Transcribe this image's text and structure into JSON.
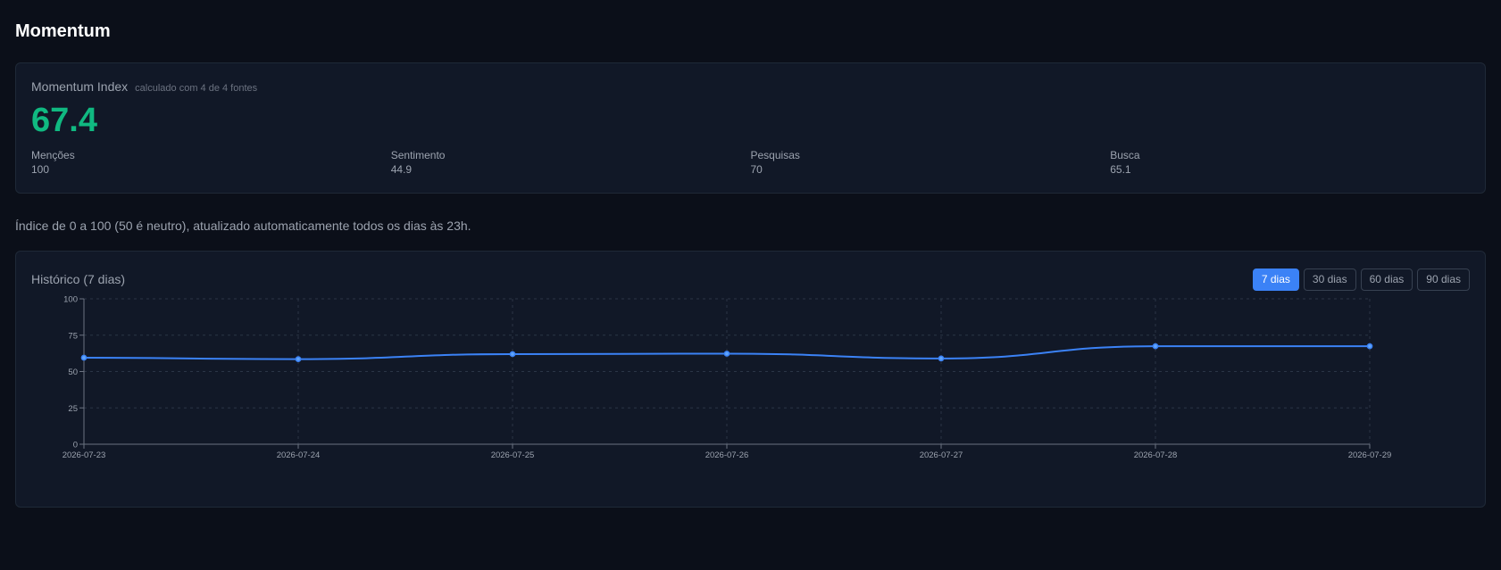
{
  "header": {
    "title": "Momentum"
  },
  "index_card": {
    "title": "Momentum Index",
    "subtitle": "calculado com 4 de 4 fontes",
    "value": "67.4",
    "value_color": "#10b981",
    "metrics": [
      {
        "label": "Menções",
        "value": "100"
      },
      {
        "label": "Sentimento",
        "value": "44.9"
      },
      {
        "label": "Pesquisas",
        "value": "70"
      },
      {
        "label": "Busca",
        "value": "65.1"
      }
    ]
  },
  "description": "Índice de 0 a 100 (50 é neutro), atualizado automaticamente todos os dias às 23h.",
  "history": {
    "title": "Histórico (7 dias)",
    "ranges": [
      {
        "label": "7 dias",
        "active": true
      },
      {
        "label": "30 dias",
        "active": false
      },
      {
        "label": "60 dias",
        "active": false
      },
      {
        "label": "90 dias",
        "active": false
      }
    ]
  },
  "chart_data": {
    "type": "line",
    "x": [
      "2026-07-23",
      "2026-07-24",
      "2026-07-25",
      "2026-07-26",
      "2026-07-27",
      "2026-07-28",
      "2026-07-29"
    ],
    "series": [
      {
        "values": [
          59.5,
          58.5,
          62,
          62.3,
          59,
          67.4,
          67.4
        ],
        "color": "#3b82f6"
      }
    ],
    "ylim": [
      0,
      100
    ],
    "yticks": [
      0,
      25,
      50,
      75,
      100
    ],
    "grid": true,
    "legend": "none"
  }
}
